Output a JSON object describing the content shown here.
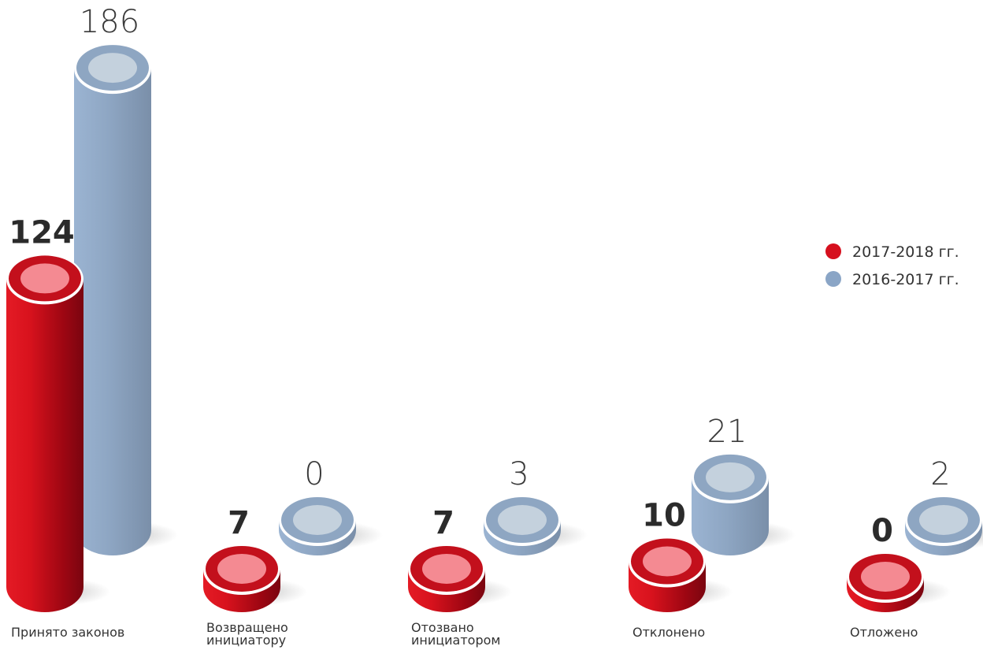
{
  "chart_data": {
    "type": "bar",
    "categories": [
      "Принято законов",
      "Возвращено инициатору",
      "Отозвано инициатором",
      "Отклонено",
      "Отложено"
    ],
    "category_label_lines": [
      [
        "Принято законов"
      ],
      [
        "Возвращено",
        "инициатору"
      ],
      [
        "Отозвано",
        "инициатором"
      ],
      [
        "Отклонено"
      ],
      [
        "Отложено"
      ]
    ],
    "series": [
      {
        "name": "2017-2018 гг.",
        "values": [
          124,
          7,
          7,
          10,
          0
        ],
        "color": "#d6101e"
      },
      {
        "name": "2016-2017 гг.",
        "values": [
          186,
          0,
          3,
          21,
          2
        ],
        "color": "#8aa5c6"
      }
    ],
    "legend_position": "right",
    "grid": false
  }
}
